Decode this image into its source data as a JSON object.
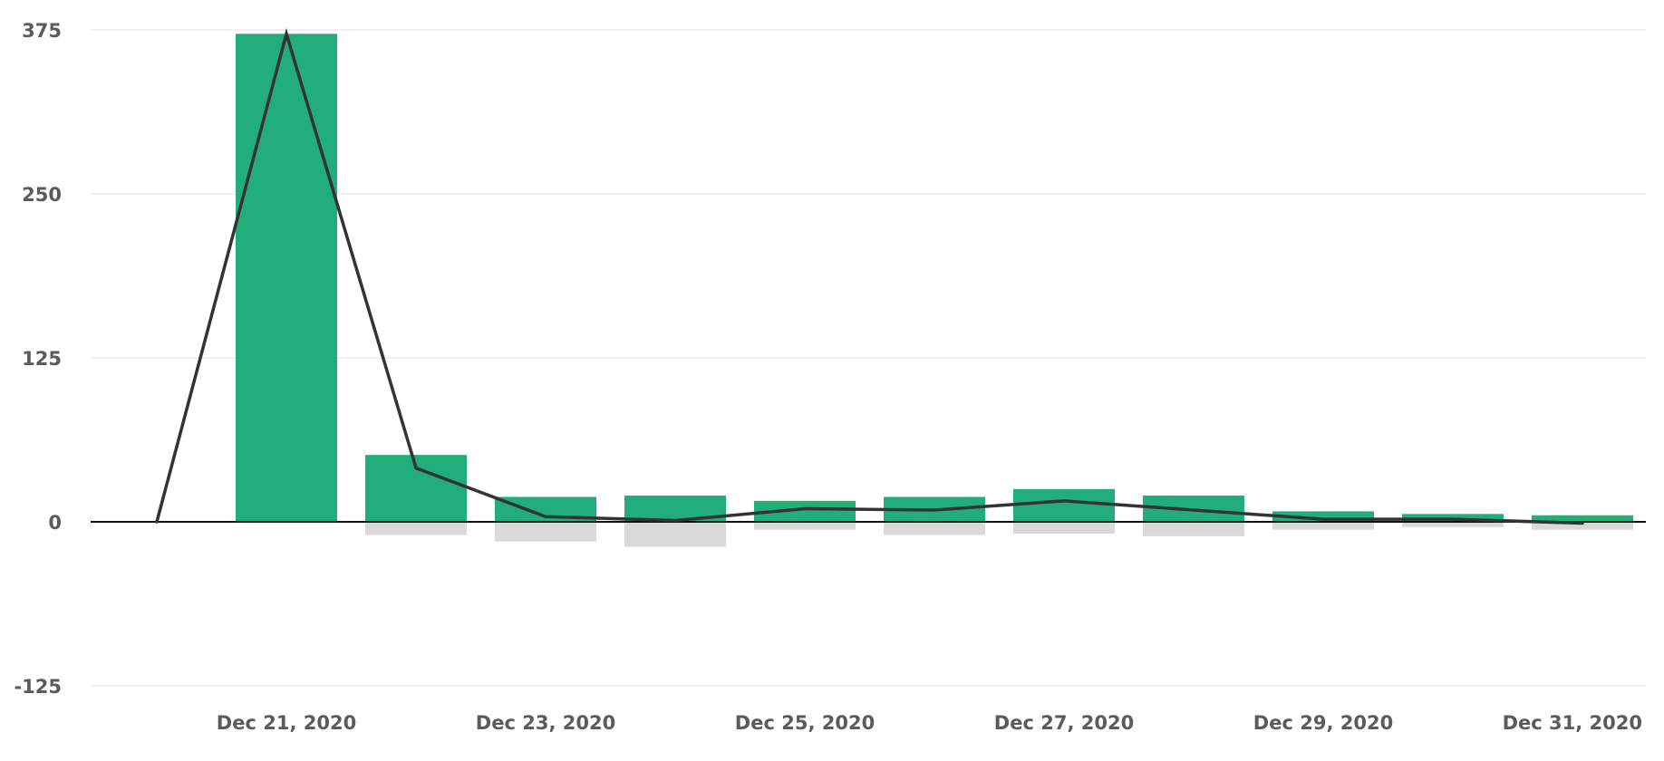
{
  "colors": {
    "positive_bar": "#22ae7a",
    "negative_bar": "#d9d9d9",
    "line": "#333333",
    "zero_line": "#111111",
    "grid": "#ececec",
    "tick_text": "#5b5b5b",
    "background": "#ffffff"
  },
  "chart_data": {
    "type": "bar",
    "title": "",
    "xlabel": "",
    "ylabel": "",
    "ylim": [
      -125,
      375
    ],
    "yticks": [
      375,
      250,
      125,
      0,
      -125
    ],
    "grid": true,
    "legend": "none",
    "x": [
      "Dec 20, 2020",
      "Dec 21, 2020",
      "Dec 22, 2020",
      "Dec 23, 2020",
      "Dec 24, 2020",
      "Dec 25, 2020",
      "Dec 26, 2020",
      "Dec 27, 2020",
      "Dec 28, 2020",
      "Dec 29, 2020",
      "Dec 30, 2020",
      "Dec 31, 2020"
    ],
    "x_tick_labels": [
      "Dec 21, 2020",
      "Dec 23, 2020",
      "Dec 25, 2020",
      "Dec 27, 2020",
      "Dec 29, 2020",
      "Dec 31, 2020"
    ],
    "series": [
      {
        "type": "bar",
        "values": [
          0,
          372,
          51,
          19,
          20,
          16,
          19,
          25,
          20,
          8,
          6,
          5
        ]
      },
      {
        "type": "bar",
        "values": [
          0,
          0,
          -10,
          -15,
          -19,
          -6,
          -10,
          -9,
          -11,
          -6,
          -4,
          -6
        ]
      },
      {
        "type": "line",
        "values": [
          0,
          372,
          41,
          4,
          1,
          10,
          9,
          16,
          9,
          2,
          2,
          -1
        ]
      }
    ]
  }
}
